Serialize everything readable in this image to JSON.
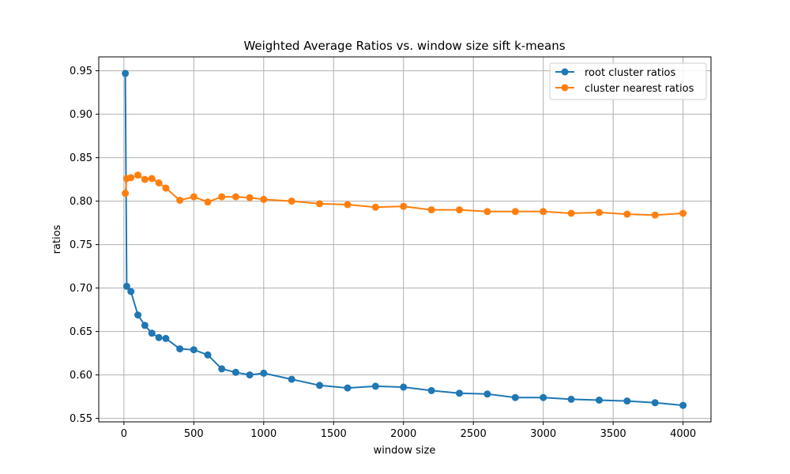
{
  "chart_data": {
    "type": "line",
    "title": "Weighted Average Ratios vs. window size sift k-means",
    "xlabel": "window size",
    "ylabel": "ratios",
    "xlim": [
      -180,
      4200
    ],
    "ylim": [
      0.546,
      0.966
    ],
    "xticks": [
      0,
      500,
      1000,
      1500,
      2000,
      2500,
      3000,
      3500,
      4000
    ],
    "xtick_labels": [
      "0",
      "500",
      "1000",
      "1500",
      "2000",
      "2500",
      "3000",
      "3500",
      "4000"
    ],
    "yticks": [
      0.55,
      0.6,
      0.65,
      0.7,
      0.75,
      0.8,
      0.85,
      0.9,
      0.95
    ],
    "ytick_labels": [
      "0.55",
      "0.60",
      "0.65",
      "0.70",
      "0.75",
      "0.80",
      "0.85",
      "0.90",
      "0.95"
    ],
    "grid": true,
    "legend_position": "top-right",
    "series": [
      {
        "name": "root cluster ratios",
        "color": "#1f77b4",
        "x": [
          10,
          20,
          50,
          100,
          150,
          200,
          250,
          300,
          400,
          500,
          600,
          700,
          800,
          900,
          1000,
          1200,
          1400,
          1600,
          1800,
          2000,
          2200,
          2400,
          2600,
          2800,
          3000,
          3200,
          3400,
          3600,
          3800,
          4000
        ],
        "y": [
          0.947,
          0.702,
          0.696,
          0.669,
          0.657,
          0.648,
          0.643,
          0.642,
          0.63,
          0.629,
          0.623,
          0.607,
          0.603,
          0.6,
          0.602,
          0.595,
          0.588,
          0.585,
          0.587,
          0.586,
          0.582,
          0.579,
          0.578,
          0.574,
          0.574,
          0.572,
          0.571,
          0.57,
          0.568,
          0.565
        ]
      },
      {
        "name": "cluster nearest ratios",
        "color": "#ff7f0e",
        "x": [
          10,
          20,
          50,
          100,
          150,
          200,
          250,
          300,
          400,
          500,
          600,
          700,
          800,
          900,
          1000,
          1200,
          1400,
          1600,
          1800,
          2000,
          2200,
          2400,
          2600,
          2800,
          3000,
          3200,
          3400,
          3600,
          3800,
          4000
        ],
        "y": [
          0.809,
          0.826,
          0.827,
          0.83,
          0.825,
          0.826,
          0.821,
          0.815,
          0.801,
          0.805,
          0.799,
          0.805,
          0.805,
          0.804,
          0.802,
          0.8,
          0.797,
          0.796,
          0.793,
          0.794,
          0.79,
          0.79,
          0.788,
          0.788,
          0.788,
          0.786,
          0.787,
          0.785,
          0.784,
          0.786
        ]
      }
    ]
  }
}
